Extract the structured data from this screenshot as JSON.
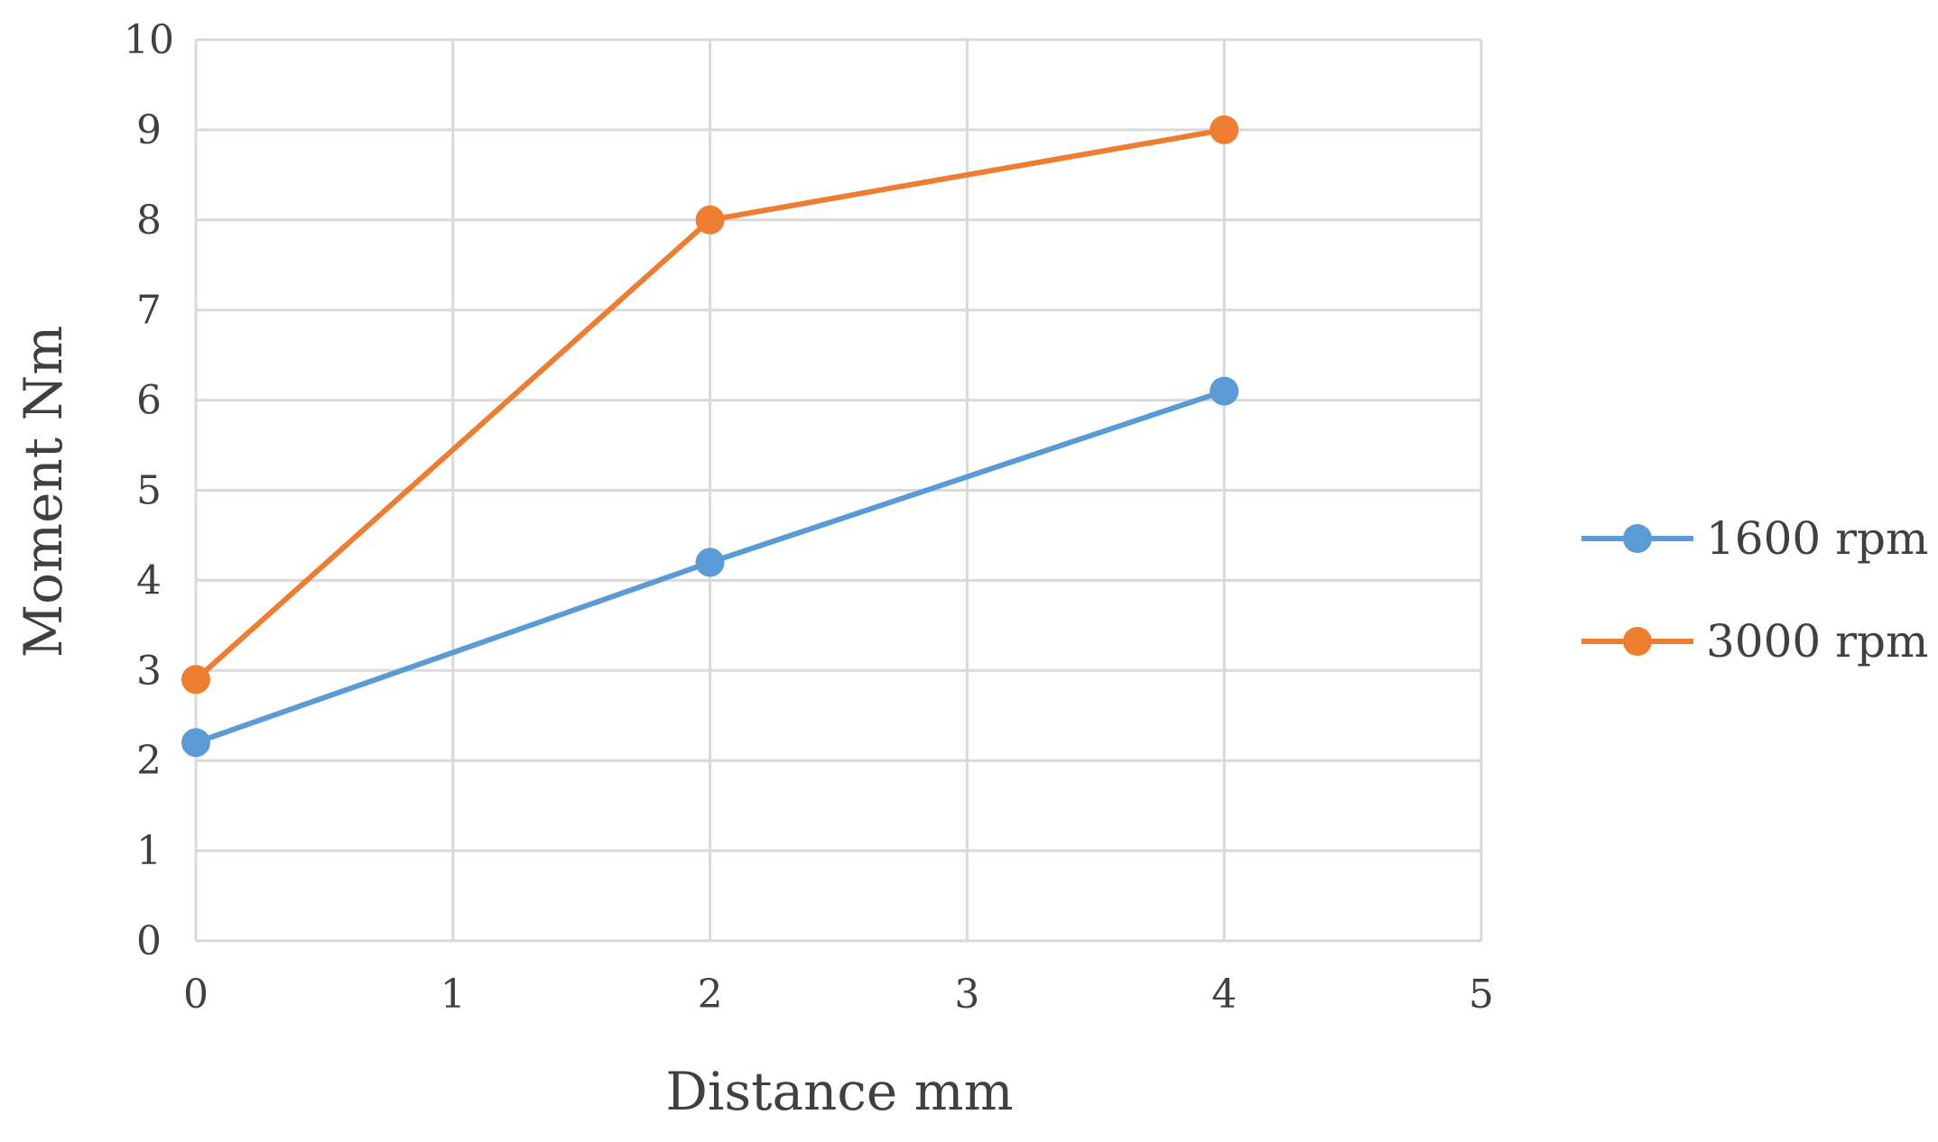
{
  "chart_data": {
    "type": "line",
    "xlabel": "Distance mm",
    "ylabel": "Moment Nm",
    "xlim": [
      0,
      5
    ],
    "ylim": [
      0,
      10
    ],
    "xticks": [
      0,
      1,
      2,
      3,
      4,
      5
    ],
    "yticks": [
      0,
      1,
      2,
      3,
      4,
      5,
      6,
      7,
      8,
      9,
      10
    ],
    "grid": true,
    "legend_position": "right",
    "series": [
      {
        "name": "1600 rpm",
        "color": "#5b9bd5",
        "x": [
          0,
          2,
          4
        ],
        "y": [
          2.2,
          4.2,
          6.1
        ]
      },
      {
        "name": "3000 rpm",
        "color": "#ed7d31",
        "x": [
          0,
          2,
          4
        ],
        "y": [
          2.9,
          8.0,
          9.0
        ]
      }
    ]
  }
}
